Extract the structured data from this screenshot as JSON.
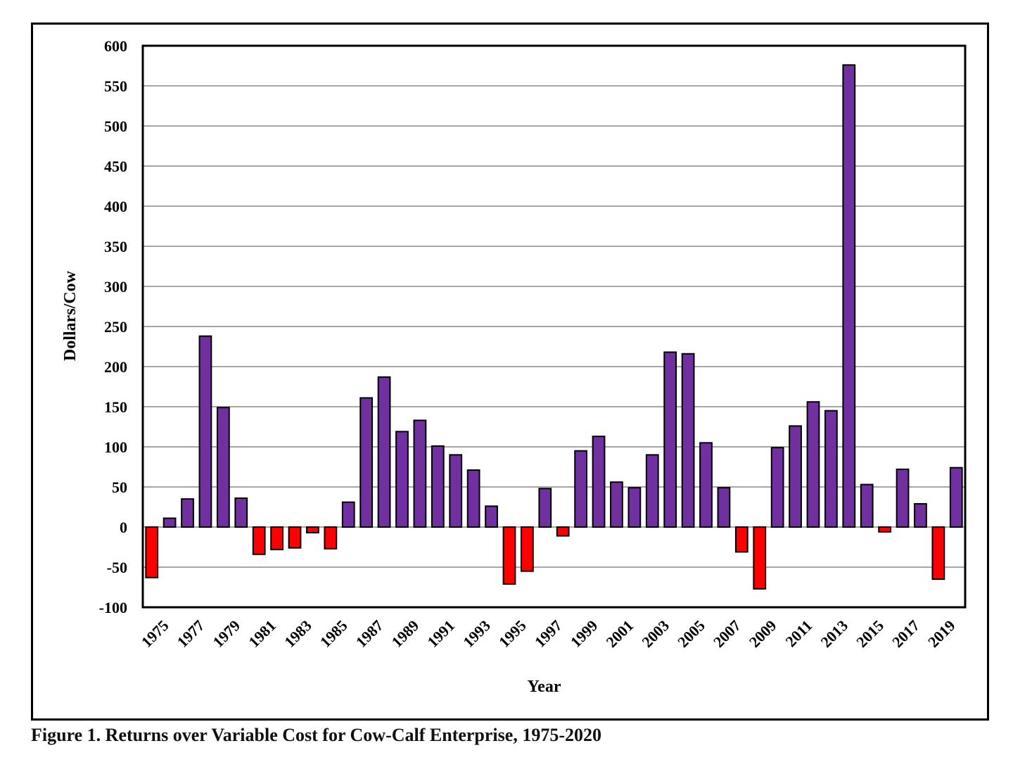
{
  "caption": "Figure 1. Returns over Variable Cost for Cow-Calf Enterprise, 1975-2020",
  "chart_data": {
    "type": "bar",
    "title": "",
    "xlabel": "Year",
    "ylabel": "Dollars/Cow",
    "ylim": [
      -100,
      600
    ],
    "yticks": [
      -100,
      -50,
      0,
      50,
      100,
      150,
      200,
      250,
      300,
      350,
      400,
      450,
      500,
      550,
      600
    ],
    "grid": true,
    "positive_color": "#7030a0",
    "negative_color": "#ff0000",
    "categories": [
      "1975",
      "1976",
      "1977",
      "1978",
      "1979",
      "1980",
      "1981",
      "1982",
      "1983",
      "1984",
      "1985",
      "1986",
      "1987",
      "1988",
      "1989",
      "1990",
      "1991",
      "1992",
      "1993",
      "1994",
      "1995",
      "1996",
      "1997",
      "1998",
      "1999",
      "2000",
      "2001",
      "2002",
      "2003",
      "2004",
      "2005",
      "2006",
      "2007",
      "2008",
      "2009",
      "2010",
      "2011",
      "2012",
      "2013",
      "2014",
      "2015",
      "2016",
      "2017",
      "2018",
      "2019",
      "2020"
    ],
    "tick_labels": [
      "1975",
      "1977",
      "1979",
      "1981",
      "1983",
      "1985",
      "1987",
      "1989",
      "1991",
      "1993",
      "1995",
      "1997",
      "1999",
      "2001",
      "2003",
      "2005",
      "2007",
      "2009",
      "2011",
      "2013",
      "2015",
      "2017",
      "2019"
    ],
    "values": [
      -63,
      11,
      35,
      238,
      149,
      36,
      -34,
      -28,
      -26,
      -7,
      -27,
      31,
      161,
      187,
      119,
      133,
      101,
      90,
      71,
      26,
      -71,
      -55,
      48,
      -11,
      95,
      113,
      56,
      49,
      90,
      218,
      216,
      105,
      49,
      -31,
      -77,
      99,
      126,
      156,
      145,
      576,
      53,
      -6,
      72,
      29,
      -65,
      74
    ]
  }
}
